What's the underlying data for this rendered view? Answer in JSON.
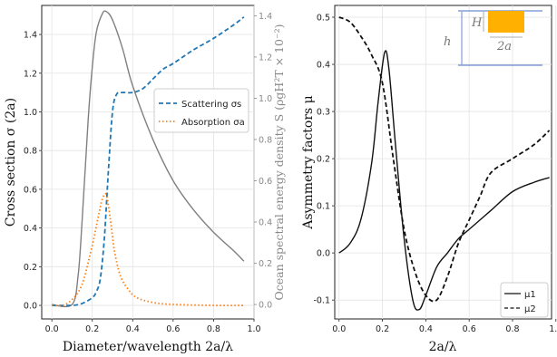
{
  "chart_data": [
    {
      "type": "line",
      "xlabel": "Diameter/wavelength 2a/λ",
      "ylabel": "Cross section σ (2a)",
      "ylabel_right": "Ocean spectral energy density S (ρgH²T × 10⁻²)",
      "xlim": [
        -0.05,
        1.0
      ],
      "ylim": [
        -0.07,
        1.55
      ],
      "ylim_right": [
        -0.07,
        1.45
      ],
      "xticks": [
        "0.0",
        "0.2",
        "0.4",
        "0.6",
        "0.8",
        "1.0"
      ],
      "yticks": [
        "0.0",
        "0.2",
        "0.4",
        "0.6",
        "0.8",
        "1.0",
        "1.2",
        "1.4"
      ],
      "yticks_right": [
        "0.0",
        "0.2",
        "0.4",
        "0.6",
        "0.8",
        "1.0",
        "1.2",
        "1.4"
      ],
      "grid": true,
      "legend_position": "center-right",
      "series": [
        {
          "name": "Scattering σs",
          "axis": "left",
          "style": "dashed",
          "color": "#1f77b4",
          "x": [
            0.0,
            0.1,
            0.15,
            0.2,
            0.22,
            0.24,
            0.26,
            0.28,
            0.3,
            0.32,
            0.35,
            0.4,
            0.45,
            0.5,
            0.55,
            0.6,
            0.7,
            0.8,
            0.9,
            0.95
          ],
          "values": [
            0.0,
            0.0,
            0.01,
            0.04,
            0.07,
            0.14,
            0.35,
            0.7,
            1.0,
            1.09,
            1.1,
            1.1,
            1.12,
            1.17,
            1.22,
            1.25,
            1.32,
            1.38,
            1.45,
            1.49
          ]
        },
        {
          "name": "Absorption σa",
          "axis": "left",
          "style": "dotted",
          "color": "#ff7f0e",
          "x": [
            0.0,
            0.05,
            0.1,
            0.15,
            0.2,
            0.23,
            0.25,
            0.27,
            0.29,
            0.31,
            0.34,
            0.38,
            0.42,
            0.5,
            0.6,
            0.8,
            0.95
          ],
          "values": [
            0.0,
            0.0,
            0.03,
            0.11,
            0.31,
            0.46,
            0.55,
            0.57,
            0.44,
            0.28,
            0.15,
            0.08,
            0.04,
            0.015,
            0.005,
            0.0,
            0.0
          ]
        },
        {
          "name": "Ocean spectral energy density",
          "axis": "right",
          "style": "solid",
          "color": "#808080",
          "x": [
            0.0,
            0.1,
            0.13,
            0.15,
            0.18,
            0.2,
            0.22,
            0.25,
            0.27,
            0.3,
            0.35,
            0.4,
            0.5,
            0.6,
            0.7,
            0.8,
            0.9,
            0.95
          ],
          "values": [
            0.0,
            0.0,
            0.14,
            0.41,
            0.9,
            1.15,
            1.32,
            1.41,
            1.42,
            1.38,
            1.24,
            1.06,
            0.8,
            0.6,
            0.46,
            0.35,
            0.26,
            0.21
          ]
        }
      ]
    },
    {
      "type": "line",
      "xlabel": "2a/λ",
      "ylabel": "Asymmetry factors μ",
      "xlim": [
        -0.02,
        0.98
      ],
      "ylim": [
        -0.14,
        0.525
      ],
      "xticks": [
        "0.0",
        "0.2",
        "0.4",
        "0.6",
        "0.8",
        "1.0"
      ],
      "yticks": [
        "-0.1",
        "0.0",
        "0.1",
        "0.2",
        "0.3",
        "0.4",
        "0.5"
      ],
      "grid": true,
      "legend_position": "bottom-right",
      "series": [
        {
          "name": "μ1",
          "style": "solid",
          "color": "#111111",
          "x": [
            0.0,
            0.05,
            0.1,
            0.15,
            0.18,
            0.21,
            0.23,
            0.26,
            0.3,
            0.34,
            0.37,
            0.4,
            0.45,
            0.5,
            0.55,
            0.6,
            0.7,
            0.8,
            0.9,
            0.97
          ],
          "values": [
            0.0,
            0.02,
            0.07,
            0.19,
            0.32,
            0.425,
            0.39,
            0.23,
            0.03,
            -0.1,
            -0.12,
            -0.09,
            -0.03,
            0.0,
            0.03,
            0.05,
            0.09,
            0.13,
            0.15,
            0.16
          ]
        },
        {
          "name": "μ2",
          "style": "dashed",
          "color": "#111111",
          "x": [
            0.0,
            0.05,
            0.1,
            0.15,
            0.2,
            0.25,
            0.3,
            0.35,
            0.4,
            0.45,
            0.5,
            0.55,
            0.6,
            0.65,
            0.7,
            0.8,
            0.9,
            0.97
          ],
          "values": [
            0.5,
            0.49,
            0.46,
            0.42,
            0.36,
            0.2,
            0.05,
            -0.04,
            -0.09,
            -0.1,
            -0.05,
            0.02,
            0.07,
            0.12,
            0.17,
            0.2,
            0.23,
            0.26
          ]
        }
      ]
    }
  ],
  "inset": {
    "label_H": "H",
    "label_h": "h",
    "label_2a": "2a",
    "block_color": "#FFB000",
    "line_color": "#4472C4"
  }
}
